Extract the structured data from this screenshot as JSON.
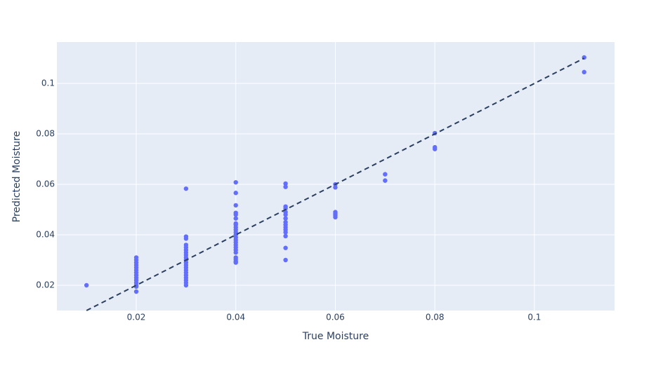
{
  "chart_data": {
    "type": "scatter",
    "x_label": "True Moisture",
    "y_label": "Predicted Moisture",
    "xlim": [
      0.00405,
      0.1161
    ],
    "ylim": [
      0.01,
      0.1164
    ],
    "xticks": [
      0.02,
      0.04,
      0.06,
      0.08,
      0.1
    ],
    "yticks": [
      0.02,
      0.04,
      0.06,
      0.08,
      0.1
    ],
    "grid": true,
    "series": [
      {
        "color": "#636efa",
        "x": [
          0.01,
          0.02,
          0.02,
          0.02,
          0.02,
          0.02,
          0.02,
          0.02,
          0.02,
          0.02,
          0.02,
          0.02,
          0.02,
          0.02,
          0.02,
          0.03,
          0.03,
          0.03,
          0.03,
          0.03,
          0.03,
          0.03,
          0.03,
          0.03,
          0.03,
          0.03,
          0.03,
          0.03,
          0.03,
          0.03,
          0.03,
          0.03,
          0.03,
          0.03,
          0.03,
          0.04,
          0.04,
          0.04,
          0.04,
          0.04,
          0.04,
          0.04,
          0.04,
          0.04,
          0.04,
          0.04,
          0.04,
          0.04,
          0.04,
          0.04,
          0.04,
          0.04,
          0.04,
          0.04,
          0.04,
          0.04,
          0.04,
          0.04,
          0.05,
          0.05,
          0.05,
          0.05,
          0.05,
          0.05,
          0.05,
          0.05,
          0.05,
          0.05,
          0.05,
          0.05,
          0.05,
          0.05,
          0.05,
          0.06,
          0.06,
          0.06,
          0.06,
          0.06,
          0.06,
          0.07,
          0.07,
          0.08,
          0.08,
          0.08,
          0.11,
          0.11
        ],
        "values": [
          0.02,
          0.0175,
          0.0195,
          0.02,
          0.021,
          0.022,
          0.023,
          0.024,
          0.025,
          0.026,
          0.027,
          0.028,
          0.029,
          0.03,
          0.031,
          0.0583,
          0.0393,
          0.0385,
          0.036,
          0.035,
          0.034,
          0.033,
          0.032,
          0.031,
          0.03,
          0.029,
          0.028,
          0.027,
          0.026,
          0.025,
          0.024,
          0.023,
          0.022,
          0.021,
          0.02,
          0.0608,
          0.0566,
          0.0517,
          0.0487,
          0.048,
          0.0465,
          0.0445,
          0.044,
          0.043,
          0.042,
          0.041,
          0.04,
          0.039,
          0.038,
          0.037,
          0.036,
          0.035,
          0.034,
          0.033,
          0.031,
          0.0303,
          0.0295,
          0.029,
          0.0603,
          0.059,
          0.0512,
          0.0505,
          0.049,
          0.048,
          0.0465,
          0.045,
          0.044,
          0.043,
          0.042,
          0.041,
          0.0395,
          0.0348,
          0.03,
          0.06,
          0.0588,
          0.049,
          0.0483,
          0.0477,
          0.047,
          0.064,
          0.0615,
          0.0803,
          0.0747,
          0.074,
          0.1103,
          0.1045
        ]
      },
      {
        "color": "#2a3f5f",
        "dash": true,
        "x": [
          0.01,
          0.11
        ],
        "values": [
          0.01,
          0.11
        ]
      }
    ]
  }
}
